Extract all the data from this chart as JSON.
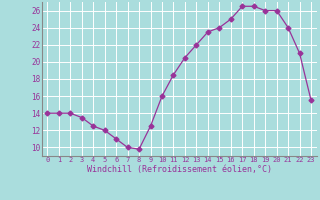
{
  "x": [
    0,
    1,
    2,
    3,
    4,
    5,
    6,
    7,
    8,
    9,
    10,
    11,
    12,
    13,
    14,
    15,
    16,
    17,
    18,
    19,
    20,
    21,
    22,
    23
  ],
  "y": [
    14.0,
    14.0,
    14.0,
    13.5,
    12.5,
    12.0,
    11.0,
    10.0,
    9.8,
    12.5,
    16.0,
    18.5,
    20.5,
    22.0,
    23.5,
    24.0,
    25.0,
    26.5,
    26.5,
    26.0,
    26.0,
    24.0,
    21.0,
    15.5
  ],
  "line_color": "#993399",
  "marker": "D",
  "marker_size": 2.5,
  "bg_color": "#aadddd",
  "grid_color": "#ffffff",
  "xlabel": "Windchill (Refroidissement éolien,°C)",
  "xlabel_color": "#993399",
  "tick_color": "#993399",
  "ylim": [
    9,
    27
  ],
  "yticks": [
    10,
    12,
    14,
    16,
    18,
    20,
    22,
    24,
    26
  ],
  "xlim": [
    -0.5,
    23.5
  ],
  "xticks": [
    0,
    1,
    2,
    3,
    4,
    5,
    6,
    7,
    8,
    9,
    10,
    11,
    12,
    13,
    14,
    15,
    16,
    17,
    18,
    19,
    20,
    21,
    22,
    23
  ]
}
